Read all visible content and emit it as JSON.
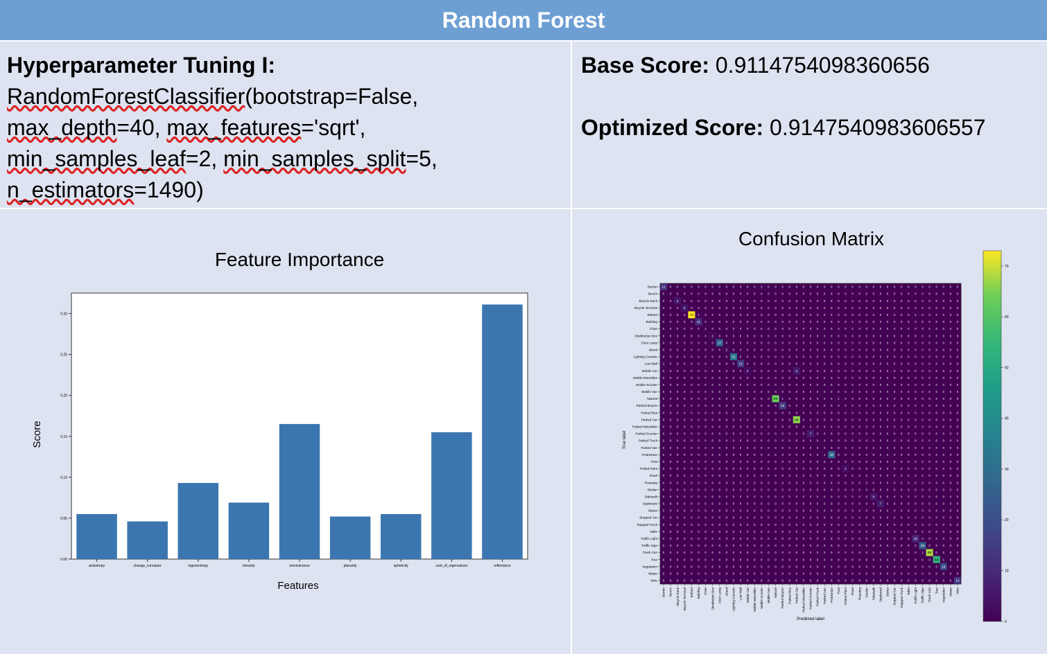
{
  "header": {
    "title": "Random Forest"
  },
  "hyperparams": {
    "heading": "Hyperparameter Tuning I:",
    "line1": "RandomForestClassifier(bootstrap=False,",
    "line2": "max_depth=40, max_features='sqrt',",
    "line3": "min_samples_leaf=2, min_samples_split=5,",
    "line4": "n_estimators=1490)"
  },
  "scores": {
    "base_label": "Base Score:",
    "base_value": "0.9114754098360656",
    "optimized_label": "Optimized Score:",
    "optimized_value": "0.9147540983606557"
  },
  "chart_data": [
    {
      "type": "bar",
      "title": "Feature Importance",
      "xlabel": "Features",
      "ylabel": "Score",
      "categories": [
        "anisotropy",
        "change_curvature",
        "eigenentropy",
        "linearity",
        "omnivariance",
        "planarity",
        "sphericity",
        "sum_of_eigenvalues",
        "reflectance"
      ],
      "values": [
        0.055,
        0.046,
        0.093,
        0.069,
        0.165,
        0.052,
        0.055,
        0.155,
        0.311
      ],
      "ylim": [
        0,
        0.325
      ],
      "yticks": [
        "0.00",
        "0.05",
        "0.10",
        "0.15",
        "0.20",
        "0.25",
        "0.30"
      ],
      "bar_color": "#3b76b0",
      "grid": false
    },
    {
      "type": "heatmap",
      "title": "Confusion Matrix",
      "xlabel": "Predicted label",
      "ylabel": "True label",
      "labels": [
        "Barrier",
        "Bench",
        "Bicycle Rack",
        "Bicycle Terminal",
        "Bollard",
        "Building",
        "Chair",
        "Distribution Box",
        "Floor Lamp",
        "Island",
        "Lighting Console",
        "Low Wall",
        "Mobile Car",
        "Mobile Motorbike",
        "Mobile Scooter",
        "Mobile Van",
        "Natural",
        "Parked Bicycle",
        "Parked Bus",
        "Parked Car",
        "Parked Motorbike",
        "Parked Scooter",
        "Parked Truck",
        "Parked Van",
        "Pedestrian",
        "Post",
        "Potted Plant",
        "Road",
        "Roasting",
        "Shelter",
        "Sidewalk",
        "Signboard",
        "Statue",
        "Stopped Car",
        "Stopped Truck",
        "Table",
        "Traffic Light",
        "Traffic Sign",
        "Trash Can",
        "Tree",
        "Vegetation",
        "Waste",
        "Wire"
      ],
      "diagonal": [
        12,
        0,
        5,
        5,
        73,
        11,
        1,
        2,
        27,
        2,
        32,
        15,
        3,
        0,
        0,
        0,
        63,
        15,
        0,
        66,
        0,
        7,
        0,
        0,
        28,
        0,
        4,
        0,
        0,
        0,
        6,
        7,
        0,
        0,
        0,
        0,
        10,
        25,
        68,
        54,
        19,
        0,
        14
      ],
      "off_diagonal": [
        {
          "row": 0,
          "col": 14,
          "value": 1
        },
        {
          "row": 4,
          "col": 5,
          "value": 1
        },
        {
          "row": 4,
          "col": 36,
          "value": 1
        },
        {
          "row": 11,
          "col": 0,
          "value": 1
        },
        {
          "row": 12,
          "col": 19,
          "value": 6
        },
        {
          "row": 16,
          "col": 17,
          "value": 1
        },
        {
          "row": 16,
          "col": 25,
          "value": 1
        },
        {
          "row": 24,
          "col": 23,
          "value": 1
        },
        {
          "row": 38,
          "col": 37,
          "value": 1
        },
        {
          "row": 39,
          "col": 40,
          "value": 1
        }
      ],
      "colorbar_ticks": [
        0,
        10,
        20,
        30,
        40,
        50,
        60,
        70
      ],
      "vmax": 73,
      "colormap": "viridis"
    }
  ]
}
